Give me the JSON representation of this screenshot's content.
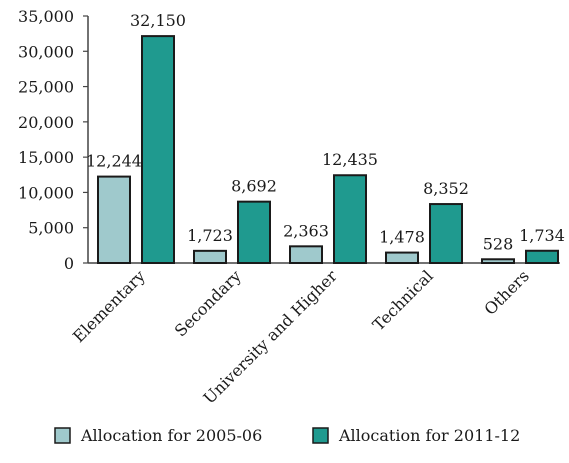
{
  "chart_data": {
    "type": "bar",
    "title": "",
    "xlabel": "",
    "ylabel": "",
    "ylim": [
      0,
      35000
    ],
    "yticks": [
      0,
      5000,
      10000,
      15000,
      20000,
      25000,
      30000,
      35000
    ],
    "ytick_labels": [
      "0",
      "5,000",
      "10,000",
      "15,000",
      "20,000",
      "25,000",
      "30,000",
      "35,000"
    ],
    "categories": [
      "Elementary",
      "Secondary",
      "University and Higher",
      "Technical",
      "Others"
    ],
    "series": [
      {
        "name": "Allocation for 2005-06",
        "color": "#9fc9cc",
        "values": [
          12244,
          1723,
          2363,
          1478,
          528
        ],
        "labels": [
          "12,244",
          "1,723",
          "2,363",
          "1,478",
          "528"
        ]
      },
      {
        "name": "Allocation for 2011-12",
        "color": "#1f9a8f",
        "values": [
          32150,
          8692,
          12435,
          8352,
          1734
        ],
        "labels": [
          "32,150",
          "8,692",
          "12,435",
          "8,352",
          "1,734"
        ]
      }
    ],
    "grid": false,
    "legend_position": "bottom"
  }
}
